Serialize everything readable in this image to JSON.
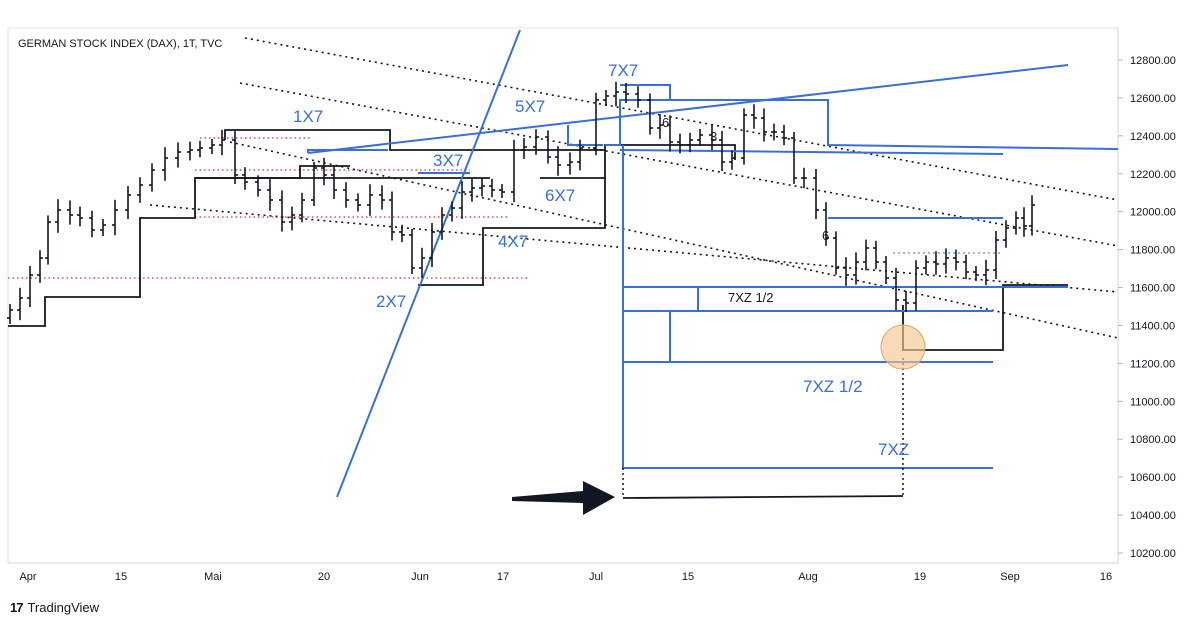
{
  "header": {
    "title": "GERMAN STOCK INDEX (DAX), 1T, TVC"
  },
  "footer": {
    "brand": "TradingView",
    "logo": "17"
  },
  "chart_data": {
    "type": "ohlc",
    "title": "GERMAN STOCK INDEX (DAX), 1T, TVC",
    "yaxis": {
      "ticks": [
        10200,
        10400,
        10600,
        10800,
        11000,
        11200,
        11400,
        11600,
        11800,
        12000,
        12200,
        12400,
        12600,
        12800
      ],
      "tick_labels": [
        "10200.00",
        "10400.00",
        "10600.00",
        "10800.00",
        "11000.00",
        "11200.00",
        "11400.00",
        "11600.00",
        "11800.00",
        "12000.00",
        "12200.00",
        "12400.00",
        "12600.00",
        "12800.00"
      ],
      "position": "right"
    },
    "xaxis": {
      "tick_labels": [
        "Apr",
        "15",
        "Mai",
        "20",
        "Jun",
        "17",
        "Jul",
        "15",
        "Aug",
        "19",
        "Sep",
        "16"
      ]
    },
    "annotations": {
      "labels": [
        {
          "text": "1X7",
          "color": "#3a6fd8"
        },
        {
          "text": "2X7",
          "color": "#3a6fd8"
        },
        {
          "text": "3X7",
          "color": "#3a6fd8"
        },
        {
          "text": "4X7",
          "color": "#3a6fd8"
        },
        {
          "text": "5X7",
          "color": "#3a6fd8"
        },
        {
          "text": "6X7",
          "color": "#3a6fd8"
        },
        {
          "text": "7X7",
          "color": "#3a6fd8"
        },
        {
          "text": "7XZ 1/2",
          "color": "#131722"
        },
        {
          "text": "7XZ 1/2",
          "color": "#3a6fd8"
        },
        {
          "text": "7XZ",
          "color": "#3a6fd8"
        }
      ],
      "wave_marks": [
        "6",
        "3",
        "6"
      ]
    },
    "colors": {
      "annotation_blue": "#3a6fd8",
      "bars": "#131722",
      "dotted_red": "#e05050",
      "highlight": "#f5c690"
    }
  }
}
